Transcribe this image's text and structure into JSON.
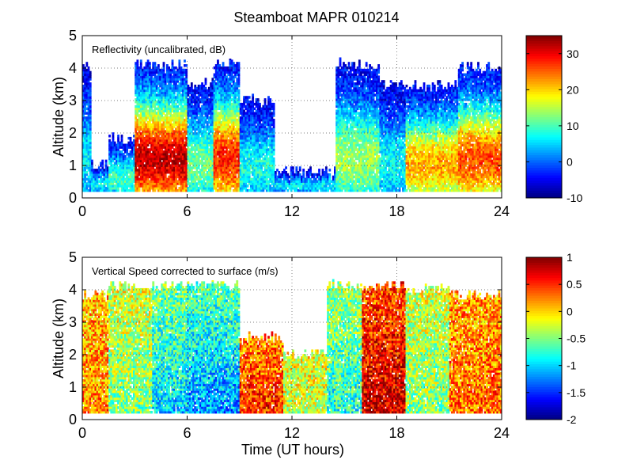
{
  "figure_title": "Steamboat MAPR 010214",
  "x_axis_label": "Time (UT hours)",
  "chart_data": [
    {
      "type": "heatmap",
      "title": "Steamboat MAPR 010214",
      "annotation": "Reflectivity (uncalibrated, dB)",
      "xlabel": "",
      "ylabel": "Altitude (km)",
      "xlim": [
        0,
        24
      ],
      "ylim": [
        0,
        5
      ],
      "xticks": [
        0,
        6,
        12,
        18,
        24
      ],
      "yticks": [
        0,
        1,
        2,
        3,
        4,
        5
      ],
      "xtick_labels": [
        "0",
        "6",
        "12",
        "18",
        "24"
      ],
      "ytick_labels": [
        "0",
        "1",
        "2",
        "3",
        "4",
        "5"
      ],
      "colorbar": {
        "range": [
          -10,
          35
        ],
        "ticks": [
          -10,
          0,
          10,
          20,
          30
        ],
        "tick_labels": [
          "-10",
          "0",
          "10",
          "20",
          "30"
        ]
      },
      "data_altitude_range_km": [
        0.2,
        4.1
      ],
      "echo_regions": [
        {
          "t_start": 0.0,
          "t_end": 0.5,
          "top_km": 4.0,
          "base_km": 0.2,
          "core_value": 2
        },
        {
          "t_start": 0.5,
          "t_end": 1.5,
          "top_km": 1.0,
          "base_km": 0.2,
          "core_value": 3
        },
        {
          "t_start": 1.5,
          "t_end": 3.0,
          "top_km": 1.8,
          "base_km": 0.2,
          "core_value": 6
        },
        {
          "t_start": 3.0,
          "t_end": 6.0,
          "top_km": 4.1,
          "base_km": 0.2,
          "core_value": 28
        },
        {
          "t_start": 6.0,
          "t_end": 7.5,
          "top_km": 3.5,
          "base_km": 0.2,
          "core_value": 8
        },
        {
          "t_start": 7.5,
          "t_end": 9.0,
          "top_km": 4.1,
          "base_km": 0.2,
          "core_value": 24
        },
        {
          "t_start": 9.0,
          "t_end": 11.0,
          "top_km": 3.0,
          "base_km": 0.2,
          "core_value": 4
        },
        {
          "t_start": 11.0,
          "t_end": 14.5,
          "top_km": 0.8,
          "base_km": 0.2,
          "core_value": 2
        },
        {
          "t_start": 14.5,
          "t_end": 17.0,
          "top_km": 4.1,
          "base_km": 0.2,
          "core_value": 10
        },
        {
          "t_start": 17.0,
          "t_end": 18.5,
          "top_km": 3.5,
          "base_km": 0.2,
          "core_value": 3
        },
        {
          "t_start": 18.5,
          "t_end": 21.5,
          "top_km": 3.4,
          "base_km": 0.2,
          "core_value": 18
        },
        {
          "t_start": 21.5,
          "t_end": 24.0,
          "top_km": 4.0,
          "base_km": 0.2,
          "core_value": 22
        }
      ]
    },
    {
      "type": "heatmap",
      "annotation": "Vertical Speed corrected to surface (m/s)",
      "xlabel": "Time (UT hours)",
      "ylabel": "Altitude (km)",
      "xlim": [
        0,
        24
      ],
      "ylim": [
        0,
        5
      ],
      "xticks": [
        0,
        6,
        12,
        18,
        24
      ],
      "yticks": [
        0,
        1,
        2,
        3,
        4,
        5
      ],
      "xtick_labels": [
        "0",
        "6",
        "12",
        "18",
        "24"
      ],
      "ytick_labels": [
        "0",
        "1",
        "2",
        "3",
        "4",
        "5"
      ],
      "colorbar": {
        "range": [
          -2,
          1
        ],
        "ticks": [
          -2,
          -1.5,
          -1,
          -0.5,
          0,
          0.5,
          1
        ],
        "tick_labels": [
          "-2",
          "-1.5",
          "-1",
          "-0.5",
          "0",
          "0.5",
          "1"
        ]
      },
      "data_altitude_range_km": [
        0.2,
        4.1
      ],
      "echo_regions": [
        {
          "t_start": 0.0,
          "t_end": 1.5,
          "top_km": 3.8,
          "base_km": 0.2,
          "core_value": 0.2
        },
        {
          "t_start": 1.5,
          "t_end": 4.0,
          "top_km": 4.1,
          "base_km": 0.2,
          "core_value": -0.5
        },
        {
          "t_start": 4.0,
          "t_end": 6.0,
          "top_km": 4.1,
          "base_km": 0.2,
          "core_value": -1.0
        },
        {
          "t_start": 6.0,
          "t_end": 9.0,
          "top_km": 4.1,
          "base_km": 0.2,
          "core_value": -1.2
        },
        {
          "t_start": 9.0,
          "t_end": 11.5,
          "top_km": 2.5,
          "base_km": 0.2,
          "core_value": 0.5
        },
        {
          "t_start": 11.5,
          "t_end": 14.0,
          "top_km": 2.0,
          "base_km": 0.2,
          "core_value": -0.3
        },
        {
          "t_start": 14.0,
          "t_end": 16.0,
          "top_km": 4.1,
          "base_km": 0.2,
          "core_value": -0.8
        },
        {
          "t_start": 16.0,
          "t_end": 18.5,
          "top_km": 4.1,
          "base_km": 0.2,
          "core_value": 0.8
        },
        {
          "t_start": 18.5,
          "t_end": 21.0,
          "top_km": 4.0,
          "base_km": 0.2,
          "core_value": -0.5
        },
        {
          "t_start": 21.0,
          "t_end": 24.0,
          "top_km": 3.8,
          "base_km": 0.2,
          "core_value": 0.3
        }
      ]
    }
  ]
}
